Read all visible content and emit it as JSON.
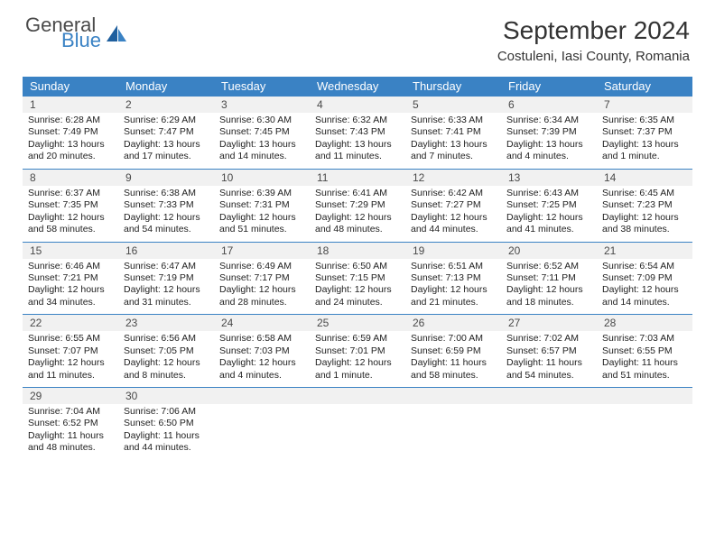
{
  "logo": {
    "general": "General",
    "blue": "Blue"
  },
  "title": "September 2024",
  "location": "Costuleni, Iasi County, Romania",
  "colors": {
    "header_bg": "#3a82c4",
    "header_fg": "#ffffff",
    "daynum_bg": "#f1f1f1",
    "body_bg": "#ffffff",
    "rule": "#3a82c4",
    "text": "#222222"
  },
  "daynames": [
    "Sunday",
    "Monday",
    "Tuesday",
    "Wednesday",
    "Thursday",
    "Friday",
    "Saturday"
  ],
  "weeks": [
    {
      "nums": [
        "1",
        "2",
        "3",
        "4",
        "5",
        "6",
        "7"
      ],
      "cells": [
        {
          "sunrise": "6:28 AM",
          "sunset": "7:49 PM",
          "daylight": "13 hours and 20 minutes."
        },
        {
          "sunrise": "6:29 AM",
          "sunset": "7:47 PM",
          "daylight": "13 hours and 17 minutes."
        },
        {
          "sunrise": "6:30 AM",
          "sunset": "7:45 PM",
          "daylight": "13 hours and 14 minutes."
        },
        {
          "sunrise": "6:32 AM",
          "sunset": "7:43 PM",
          "daylight": "13 hours and 11 minutes."
        },
        {
          "sunrise": "6:33 AM",
          "sunset": "7:41 PM",
          "daylight": "13 hours and 7 minutes."
        },
        {
          "sunrise": "6:34 AM",
          "sunset": "7:39 PM",
          "daylight": "13 hours and 4 minutes."
        },
        {
          "sunrise": "6:35 AM",
          "sunset": "7:37 PM",
          "daylight": "13 hours and 1 minute."
        }
      ]
    },
    {
      "nums": [
        "8",
        "9",
        "10",
        "11",
        "12",
        "13",
        "14"
      ],
      "cells": [
        {
          "sunrise": "6:37 AM",
          "sunset": "7:35 PM",
          "daylight": "12 hours and 58 minutes."
        },
        {
          "sunrise": "6:38 AM",
          "sunset": "7:33 PM",
          "daylight": "12 hours and 54 minutes."
        },
        {
          "sunrise": "6:39 AM",
          "sunset": "7:31 PM",
          "daylight": "12 hours and 51 minutes."
        },
        {
          "sunrise": "6:41 AM",
          "sunset": "7:29 PM",
          "daylight": "12 hours and 48 minutes."
        },
        {
          "sunrise": "6:42 AM",
          "sunset": "7:27 PM",
          "daylight": "12 hours and 44 minutes."
        },
        {
          "sunrise": "6:43 AM",
          "sunset": "7:25 PM",
          "daylight": "12 hours and 41 minutes."
        },
        {
          "sunrise": "6:45 AM",
          "sunset": "7:23 PM",
          "daylight": "12 hours and 38 minutes."
        }
      ]
    },
    {
      "nums": [
        "15",
        "16",
        "17",
        "18",
        "19",
        "20",
        "21"
      ],
      "cells": [
        {
          "sunrise": "6:46 AM",
          "sunset": "7:21 PM",
          "daylight": "12 hours and 34 minutes."
        },
        {
          "sunrise": "6:47 AM",
          "sunset": "7:19 PM",
          "daylight": "12 hours and 31 minutes."
        },
        {
          "sunrise": "6:49 AM",
          "sunset": "7:17 PM",
          "daylight": "12 hours and 28 minutes."
        },
        {
          "sunrise": "6:50 AM",
          "sunset": "7:15 PM",
          "daylight": "12 hours and 24 minutes."
        },
        {
          "sunrise": "6:51 AM",
          "sunset": "7:13 PM",
          "daylight": "12 hours and 21 minutes."
        },
        {
          "sunrise": "6:52 AM",
          "sunset": "7:11 PM",
          "daylight": "12 hours and 18 minutes."
        },
        {
          "sunrise": "6:54 AM",
          "sunset": "7:09 PM",
          "daylight": "12 hours and 14 minutes."
        }
      ]
    },
    {
      "nums": [
        "22",
        "23",
        "24",
        "25",
        "26",
        "27",
        "28"
      ],
      "cells": [
        {
          "sunrise": "6:55 AM",
          "sunset": "7:07 PM",
          "daylight": "12 hours and 11 minutes."
        },
        {
          "sunrise": "6:56 AM",
          "sunset": "7:05 PM",
          "daylight": "12 hours and 8 minutes."
        },
        {
          "sunrise": "6:58 AM",
          "sunset": "7:03 PM",
          "daylight": "12 hours and 4 minutes."
        },
        {
          "sunrise": "6:59 AM",
          "sunset": "7:01 PM",
          "daylight": "12 hours and 1 minute."
        },
        {
          "sunrise": "7:00 AM",
          "sunset": "6:59 PM",
          "daylight": "11 hours and 58 minutes."
        },
        {
          "sunrise": "7:02 AM",
          "sunset": "6:57 PM",
          "daylight": "11 hours and 54 minutes."
        },
        {
          "sunrise": "7:03 AM",
          "sunset": "6:55 PM",
          "daylight": "11 hours and 51 minutes."
        }
      ]
    },
    {
      "nums": [
        "29",
        "30",
        "",
        "",
        "",
        "",
        ""
      ],
      "cells": [
        {
          "sunrise": "7:04 AM",
          "sunset": "6:52 PM",
          "daylight": "11 hours and 48 minutes."
        },
        {
          "sunrise": "7:06 AM",
          "sunset": "6:50 PM",
          "daylight": "11 hours and 44 minutes."
        },
        null,
        null,
        null,
        null,
        null
      ]
    }
  ],
  "labels": {
    "sunrise": "Sunrise:",
    "sunset": "Sunset:",
    "daylight": "Daylight:"
  }
}
